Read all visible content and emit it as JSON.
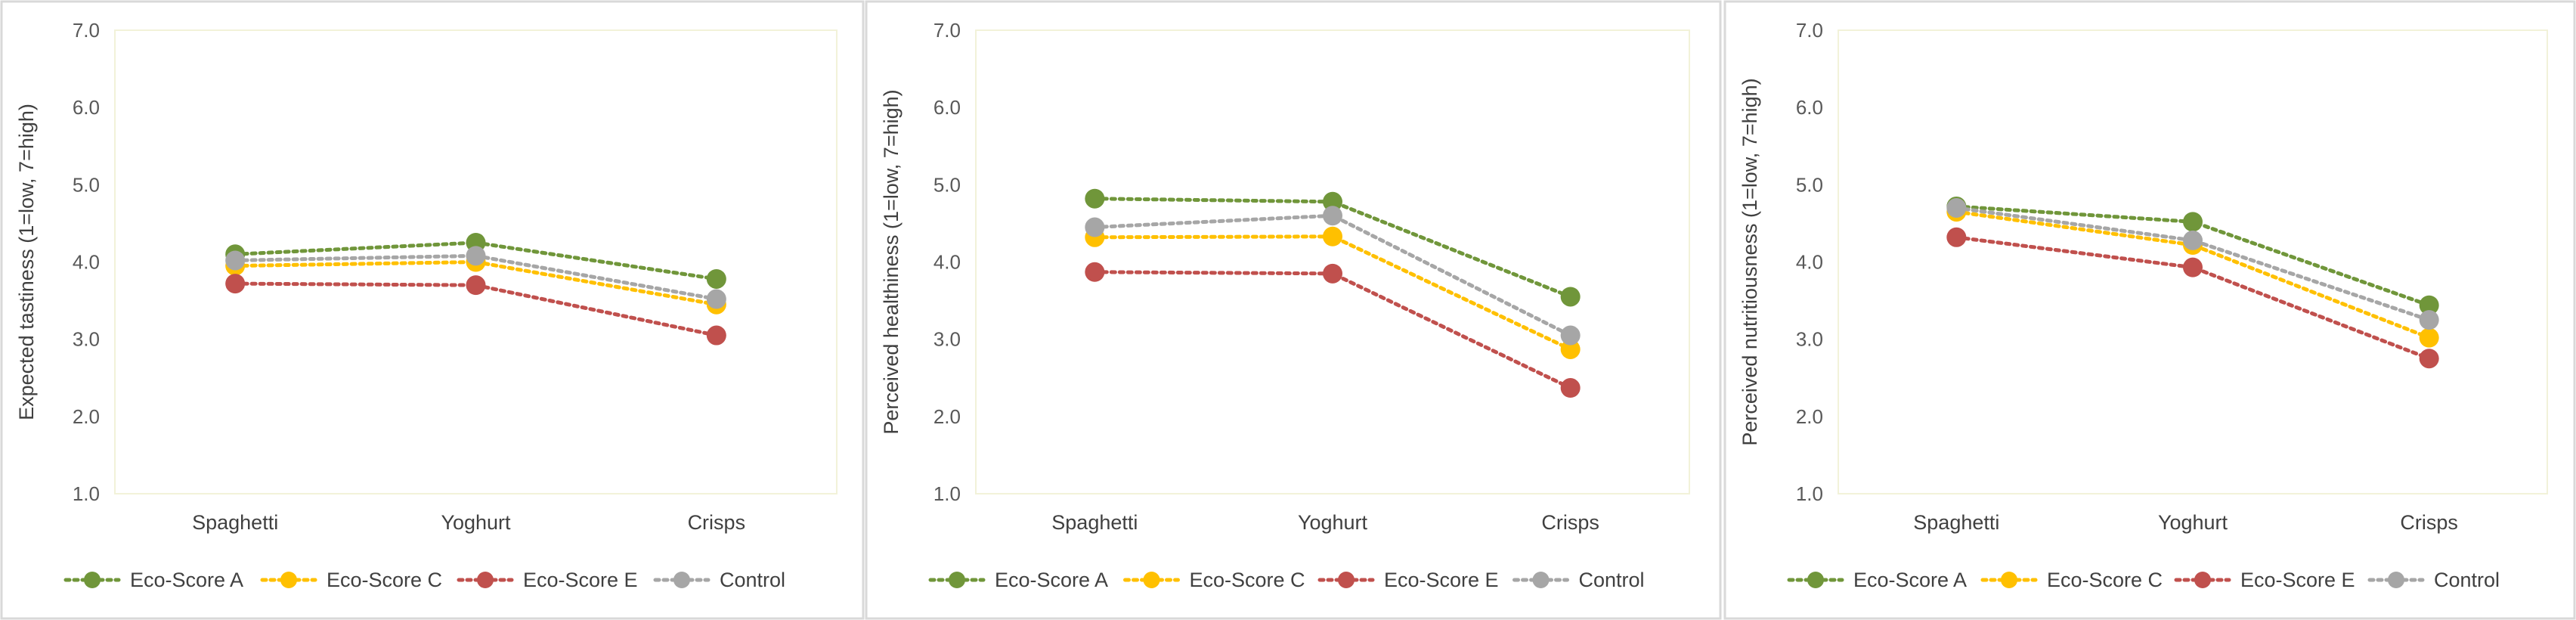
{
  "chart_data": [
    {
      "type": "line",
      "title": "",
      "xlabel": "",
      "ylabel": "Expected tastiness (1=low, 7=high)",
      "categories": [
        "Spaghetti",
        "Yoghurt",
        "Crisps"
      ],
      "ylim": [
        1.0,
        7.0
      ],
      "yticks": [
        "1.0",
        "2.0",
        "3.0",
        "4.0",
        "5.0",
        "6.0",
        "7.0"
      ],
      "grid": false,
      "legend_position": "bottom",
      "series": [
        {
          "name": "Eco-Score A",
          "color": "#70963a",
          "values": [
            4.1,
            4.25,
            3.78
          ]
        },
        {
          "name": "Eco-Score C",
          "color": "#ffc000",
          "values": [
            3.95,
            4.0,
            3.45
          ]
        },
        {
          "name": "Eco-Score E",
          "color": "#c0504d",
          "values": [
            3.72,
            3.7,
            3.05
          ]
        },
        {
          "name": "Control",
          "color": "#a6a6a6",
          "values": [
            4.02,
            4.08,
            3.52
          ]
        }
      ]
    },
    {
      "type": "line",
      "title": "",
      "xlabel": "",
      "ylabel": "Perceived healthiness (1=low, 7=high)",
      "categories": [
        "Spaghetti",
        "Yoghurt",
        "Crisps"
      ],
      "ylim": [
        1.0,
        7.0
      ],
      "yticks": [
        "1.0",
        "2.0",
        "3.0",
        "4.0",
        "5.0",
        "6.0",
        "7.0"
      ],
      "grid": false,
      "legend_position": "bottom",
      "series": [
        {
          "name": "Eco-Score A",
          "color": "#70963a",
          "values": [
            4.82,
            4.78,
            3.55
          ]
        },
        {
          "name": "Eco-Score C",
          "color": "#ffc000",
          "values": [
            4.32,
            4.33,
            2.87
          ]
        },
        {
          "name": "Eco-Score E",
          "color": "#c0504d",
          "values": [
            3.87,
            3.85,
            2.37
          ]
        },
        {
          "name": "Control",
          "color": "#a6a6a6",
          "values": [
            4.45,
            4.6,
            3.05
          ]
        }
      ]
    },
    {
      "type": "line",
      "title": "",
      "xlabel": "",
      "ylabel": "Perceived nutritiousness (1=low, 7=high)",
      "categories": [
        "Spaghetti",
        "Yoghurt",
        "Crisps"
      ],
      "ylim": [
        1.0,
        7.0
      ],
      "yticks": [
        "1.0",
        "2.0",
        "3.0",
        "4.0",
        "5.0",
        "6.0",
        "7.0"
      ],
      "grid": false,
      "legend_position": "bottom",
      "series": [
        {
          "name": "Eco-Score A",
          "color": "#70963a",
          "values": [
            4.72,
            4.52,
            3.44
          ]
        },
        {
          "name": "Eco-Score C",
          "color": "#ffc000",
          "values": [
            4.65,
            4.22,
            3.02
          ]
        },
        {
          "name": "Eco-Score E",
          "color": "#c0504d",
          "values": [
            4.32,
            3.93,
            2.75
          ]
        },
        {
          "name": "Control",
          "color": "#a6a6a6",
          "values": [
            4.7,
            4.28,
            3.25
          ]
        }
      ]
    }
  ]
}
